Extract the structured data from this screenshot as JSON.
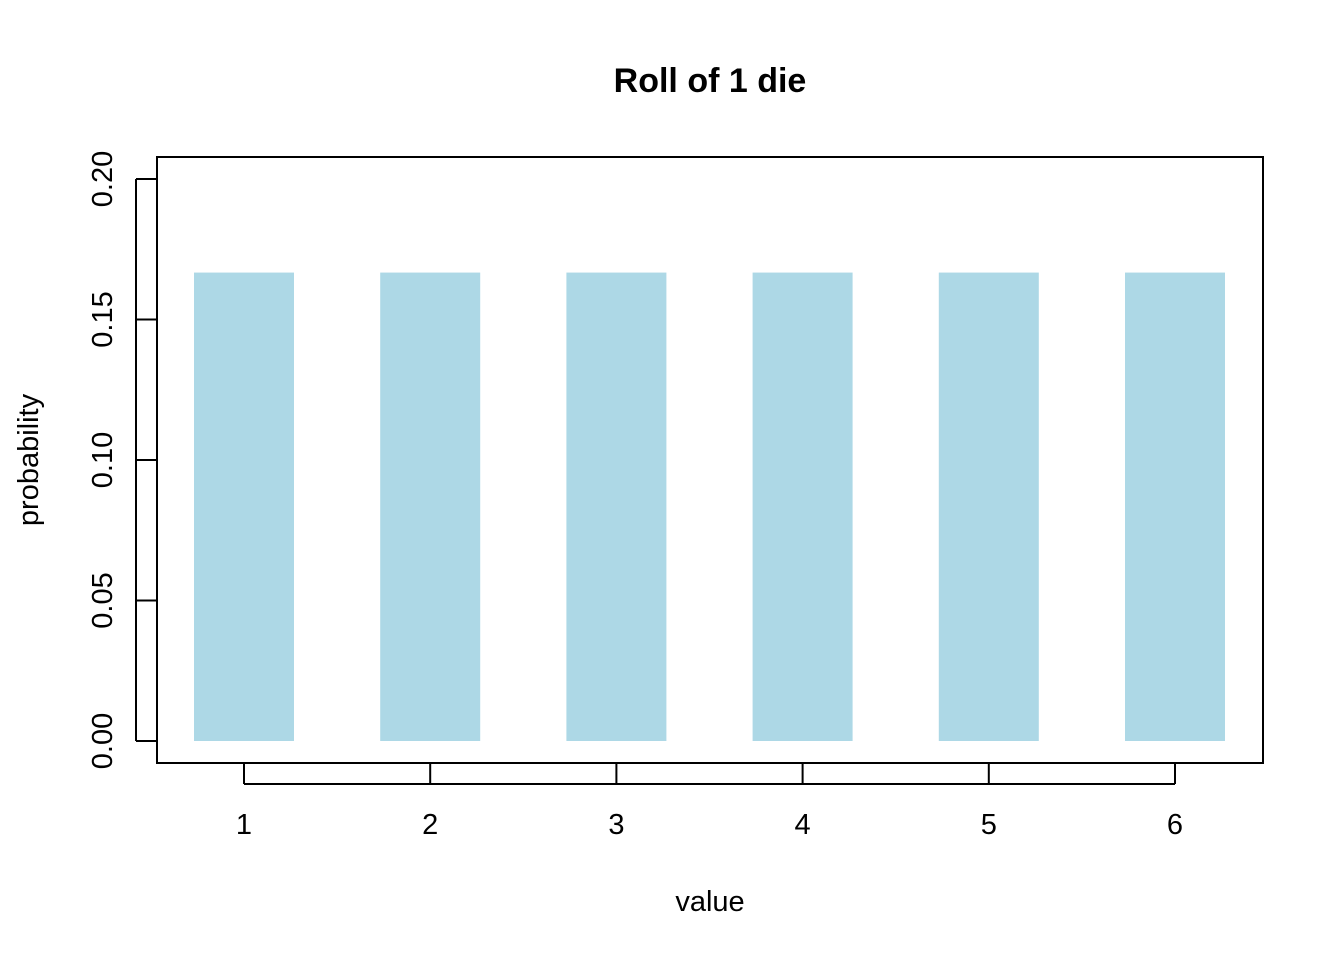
{
  "chart_data": {
    "type": "bar",
    "title": "Roll of 1 die",
    "xlabel": "value",
    "ylabel": "probability",
    "categories": [
      "1",
      "2",
      "3",
      "4",
      "5",
      "6"
    ],
    "values": [
      0.1667,
      0.1667,
      0.1667,
      0.1667,
      0.1667,
      0.1667
    ],
    "ylim": [
      0,
      0.2
    ],
    "yticks": [
      "0.00",
      "0.05",
      "0.10",
      "0.15",
      "0.20"
    ],
    "bar_color": "#add8e6",
    "grid": false,
    "legend": "none"
  }
}
